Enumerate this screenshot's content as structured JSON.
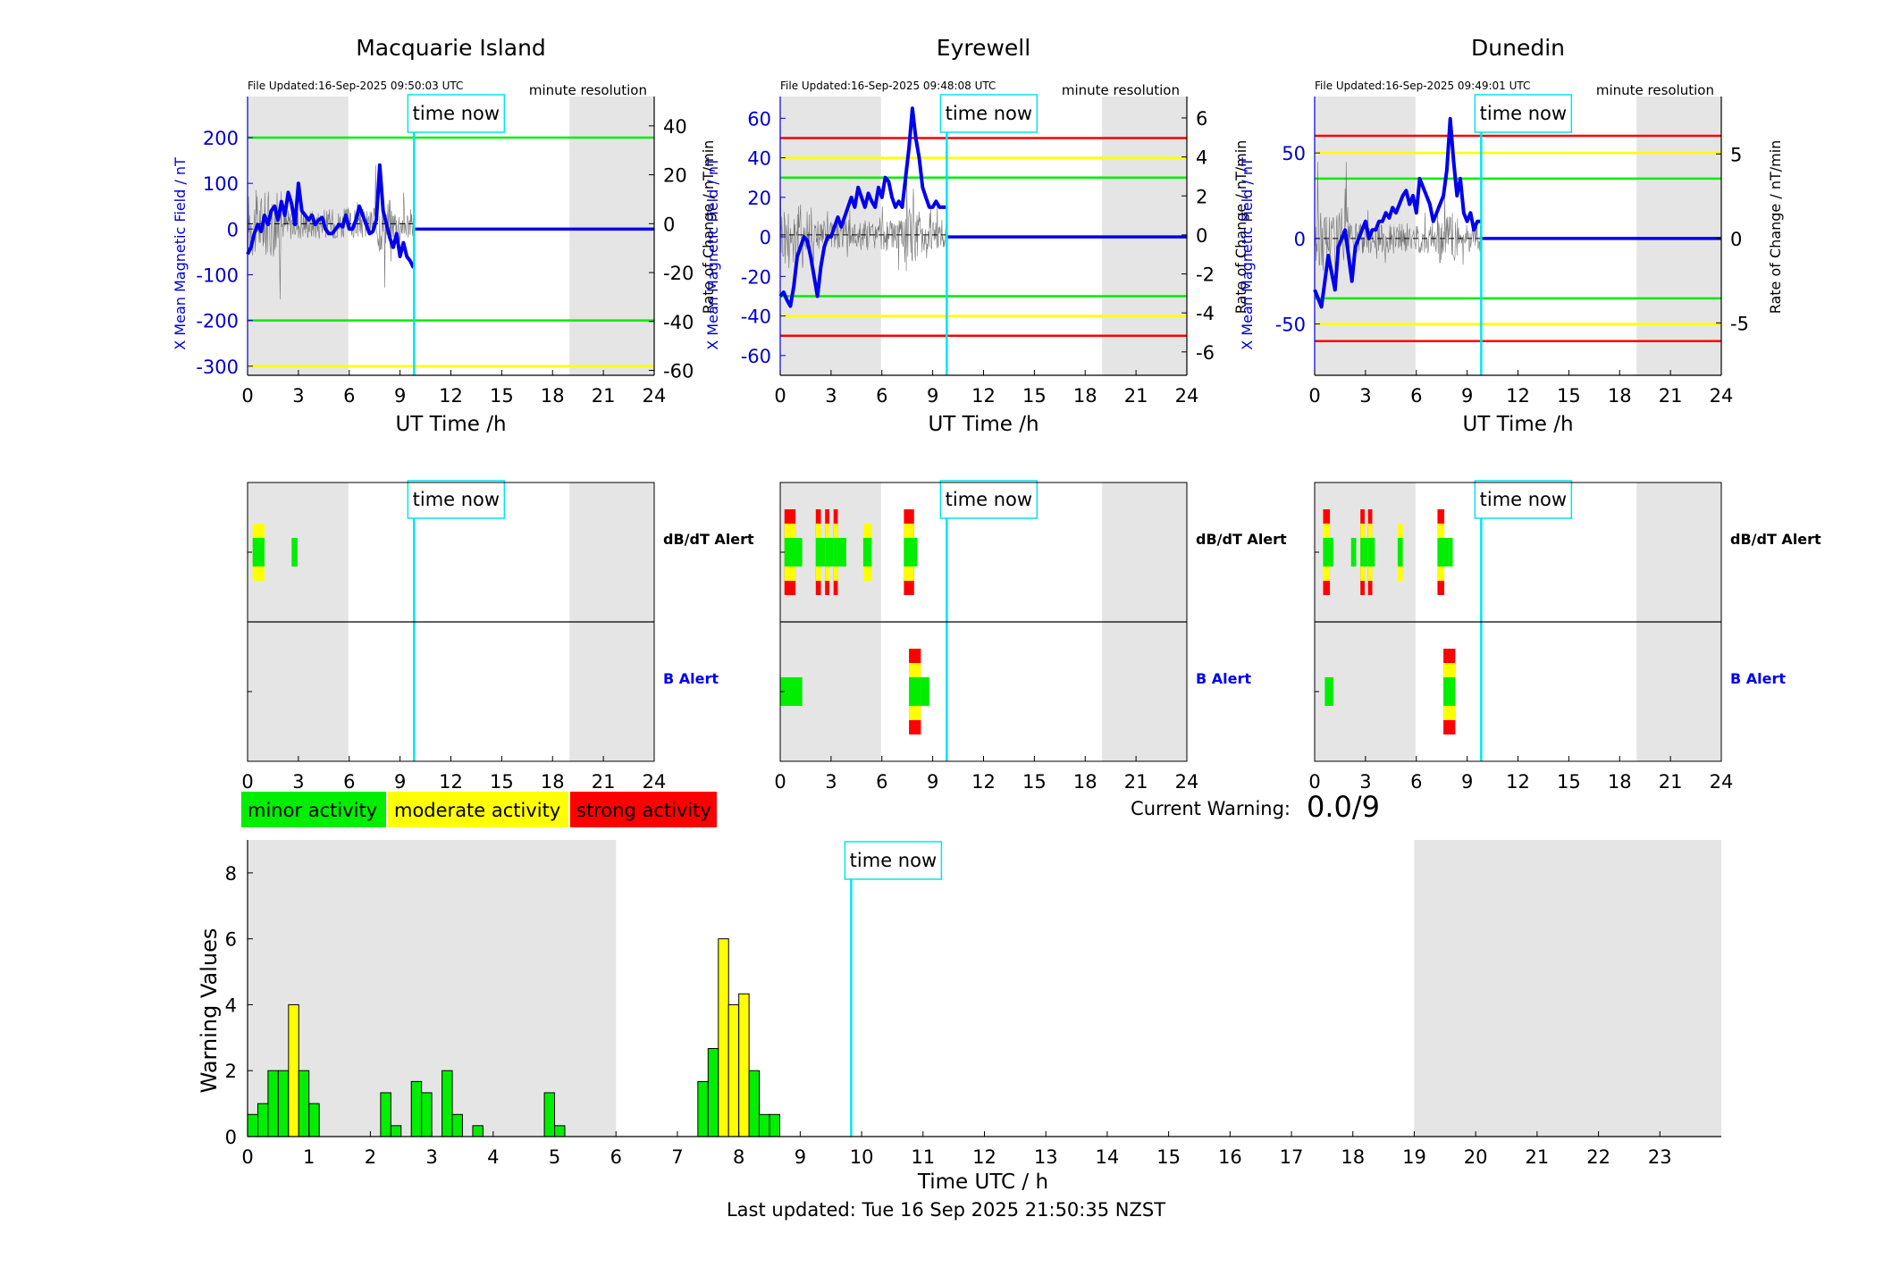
{
  "ui": {
    "time_now_label": "time now",
    "file_updated_prefix": "File Updated:",
    "resolution_label": "minute resolution",
    "x_axis_label": "UT Time /h",
    "left_axis_label": "X Mean Magnetic Field / nT",
    "right_axis_label": "Rate of Change / nT/min",
    "dbdt_alert_label": "dB/dT Alert",
    "b_alert_label": "B Alert",
    "current_warning_label": "Current Warning:",
    "current_warning_value": "0.0/9",
    "last_updated": "Last updated: Tue 16 Sep 2025 21:50:35 NZST",
    "x_ticks": [
      "0",
      "3",
      "6",
      "9",
      "12",
      "15",
      "18",
      "21",
      "24"
    ]
  },
  "colors": {
    "minor": "#00ee00",
    "moderate": "#ffff00",
    "strong": "#ff0000",
    "time_now": "#00e5ee",
    "field_line": "#0000ee",
    "night_shade": "#e5e5e5",
    "axis_blue": "#0000cc"
  },
  "legend": [
    {
      "label": "minor activity",
      "color": "#00ee00"
    },
    {
      "label": "moderate activity",
      "color": "#ffff00"
    },
    {
      "label": "strong activity",
      "color": "#ff0000"
    }
  ],
  "chart_data": [
    {
      "type": "line",
      "station": "Macquarie Island",
      "file_updated": "16-Sep-2025 09:50:03 UTC",
      "time_now_h": 9.83,
      "night_shading_h": [
        [
          0,
          5.95
        ],
        [
          19,
          24
        ]
      ],
      "xlim": [
        0,
        24
      ],
      "ylim_left": [
        -320,
        290
      ],
      "yticks_left": [
        200,
        100,
        0,
        -100,
        -200,
        -300
      ],
      "ylim_right": [
        -62,
        52
      ],
      "yticks_right": [
        40,
        20,
        0,
        -20,
        -40,
        -60
      ],
      "thresholds": [
        {
          "value": 200,
          "color": "green"
        },
        {
          "value": -200,
          "color": "green"
        },
        {
          "value": -300,
          "color": "yellow"
        }
      ],
      "field_x": [
        0,
        0.2,
        0.4,
        0.6,
        0.8,
        1.0,
        1.2,
        1.4,
        1.6,
        1.8,
        2.0,
        2.2,
        2.4,
        2.6,
        2.8,
        3.0,
        3.2,
        3.4,
        3.6,
        3.8,
        4.0,
        4.2,
        4.4,
        4.6,
        4.8,
        5.0,
        5.2,
        5.4,
        5.6,
        5.8,
        6.0,
        6.2,
        6.4,
        6.6,
        6.8,
        7.0,
        7.2,
        7.4,
        7.6,
        7.8,
        8.0,
        8.2,
        8.4,
        8.6,
        8.8,
        9.0,
        9.2,
        9.4,
        9.6,
        9.8
      ],
      "field_y": [
        -55,
        -40,
        -10,
        10,
        -5,
        30,
        10,
        40,
        50,
        20,
        60,
        30,
        80,
        55,
        10,
        100,
        40,
        30,
        20,
        30,
        10,
        20,
        25,
        0,
        -10,
        -10,
        0,
        10,
        5,
        30,
        0,
        0,
        20,
        50,
        30,
        10,
        -10,
        -5,
        20,
        140,
        40,
        10,
        -20,
        -40,
        -10,
        -60,
        -30,
        -60,
        -70,
        -85
      ]
    },
    {
      "type": "line",
      "station": "Eyrewell",
      "file_updated": "16-Sep-2025 09:48:08 UTC",
      "time_now_h": 9.83,
      "night_shading_h": [
        [
          0,
          5.95
        ],
        [
          19,
          24
        ]
      ],
      "xlim": [
        0,
        24
      ],
      "ylim_left": [
        -70,
        71
      ],
      "yticks_left": [
        60,
        40,
        20,
        0,
        -20,
        -40,
        -60
      ],
      "ylim_right": [
        -7.2,
        7.1
      ],
      "yticks_right": [
        6,
        4,
        2,
        0,
        -2,
        -4,
        -6
      ],
      "thresholds": [
        {
          "value": 50,
          "color": "red"
        },
        {
          "value": 40,
          "color": "yellow"
        },
        {
          "value": 30,
          "color": "green"
        },
        {
          "value": -30,
          "color": "green"
        },
        {
          "value": -40,
          "color": "yellow"
        },
        {
          "value": -50,
          "color": "red"
        }
      ],
      "field_x": [
        0,
        0.2,
        0.4,
        0.6,
        0.8,
        1.0,
        1.2,
        1.4,
        1.6,
        1.8,
        2.0,
        2.2,
        2.4,
        2.6,
        2.8,
        3.0,
        3.2,
        3.4,
        3.6,
        3.8,
        4.0,
        4.2,
        4.4,
        4.6,
        4.8,
        5.0,
        5.2,
        5.4,
        5.6,
        5.8,
        6.0,
        6.2,
        6.4,
        6.6,
        6.8,
        7.0,
        7.2,
        7.4,
        7.6,
        7.8,
        8.0,
        8.2,
        8.4,
        8.6,
        8.8,
        9.0,
        9.2,
        9.4,
        9.6,
        9.8
      ],
      "field_y": [
        -30,
        -28,
        -32,
        -35,
        -25,
        -10,
        -5,
        0,
        -2,
        -10,
        -20,
        -30,
        -15,
        -5,
        0,
        0,
        5,
        10,
        5,
        10,
        15,
        20,
        15,
        25,
        20,
        15,
        22,
        18,
        15,
        25,
        20,
        30,
        28,
        20,
        15,
        18,
        15,
        30,
        45,
        65,
        50,
        40,
        25,
        20,
        15,
        15,
        18,
        15,
        15,
        15
      ]
    },
    {
      "type": "line",
      "station": "Dunedin",
      "file_updated": "16-Sep-2025 09:49:01 UTC",
      "time_now_h": 9.83,
      "night_shading_h": [
        [
          0,
          5.95
        ],
        [
          19,
          24
        ]
      ],
      "xlim": [
        0,
        24
      ],
      "ylim_left": [
        -80,
        83
      ],
      "yticks_left": [
        50,
        0,
        -50
      ],
      "ylim_right": [
        -8.1,
        8.4
      ],
      "yticks_right": [
        5,
        0,
        -5
      ],
      "thresholds": [
        {
          "value": 60,
          "color": "red"
        },
        {
          "value": 50,
          "color": "yellow"
        },
        {
          "value": 35,
          "color": "green"
        },
        {
          "value": -35,
          "color": "green"
        },
        {
          "value": -50,
          "color": "yellow"
        },
        {
          "value": -60,
          "color": "red"
        }
      ],
      "field_x": [
        0,
        0.2,
        0.4,
        0.6,
        0.8,
        1.0,
        1.2,
        1.4,
        1.6,
        1.8,
        2.0,
        2.2,
        2.4,
        2.6,
        2.8,
        3.0,
        3.2,
        3.4,
        3.6,
        3.8,
        4.0,
        4.2,
        4.4,
        4.6,
        4.8,
        5.0,
        5.2,
        5.4,
        5.6,
        5.8,
        6.0,
        6.2,
        6.4,
        6.6,
        6.8,
        7.0,
        7.2,
        7.4,
        7.6,
        7.8,
        8.0,
        8.2,
        8.4,
        8.6,
        8.8,
        9.0,
        9.2,
        9.4,
        9.6,
        9.8
      ],
      "field_y": [
        -30,
        -35,
        -40,
        -25,
        -10,
        -20,
        -30,
        -5,
        0,
        5,
        -10,
        -25,
        -5,
        0,
        5,
        10,
        0,
        5,
        5,
        10,
        10,
        15,
        12,
        18,
        15,
        20,
        25,
        28,
        20,
        25,
        15,
        35,
        30,
        25,
        20,
        10,
        15,
        20,
        25,
        40,
        70,
        45,
        25,
        35,
        15,
        10,
        15,
        5,
        10,
        10
      ]
    },
    {
      "type": "alert_timeline",
      "station": "Macquarie Island",
      "time_now_h": 9.83,
      "night_shading_h": [
        [
          0,
          5.95
        ],
        [
          19,
          24
        ]
      ],
      "dbdt_alert": [
        {
          "x0": 0.3,
          "x1": 1.0,
          "level": 2
        },
        {
          "x0": 2.6,
          "x1": 2.95,
          "level": 1
        }
      ],
      "b_alert": []
    },
    {
      "type": "alert_timeline",
      "station": "Eyrewell",
      "time_now_h": 9.83,
      "night_shading_h": [
        [
          0,
          5.95
        ],
        [
          19,
          24
        ]
      ],
      "dbdt_alert": [
        {
          "x0": 0.25,
          "x1": 0.9,
          "level": 3
        },
        {
          "x0": 0.9,
          "x1": 1.3,
          "level": 1
        },
        {
          "x0": 2.1,
          "x1": 2.4,
          "level": 3
        },
        {
          "x0": 2.4,
          "x1": 2.65,
          "level": 1
        },
        {
          "x0": 2.65,
          "x1": 2.9,
          "level": 3
        },
        {
          "x0": 2.9,
          "x1": 3.15,
          "level": 1
        },
        {
          "x0": 3.15,
          "x1": 3.4,
          "level": 3
        },
        {
          "x0": 3.4,
          "x1": 3.9,
          "level": 1
        },
        {
          "x0": 4.9,
          "x1": 5.4,
          "level": 2
        },
        {
          "x0": 7.3,
          "x1": 7.9,
          "level": 3
        },
        {
          "x0": 7.9,
          "x1": 8.1,
          "level": 1
        }
      ],
      "b_alert": [
        {
          "x0": 0.0,
          "x1": 1.3,
          "level": 1
        },
        {
          "x0": 7.6,
          "x1": 8.3,
          "level": 3
        },
        {
          "x0": 8.3,
          "x1": 8.8,
          "level": 1
        }
      ]
    },
    {
      "type": "alert_timeline",
      "station": "Dunedin",
      "time_now_h": 9.83,
      "night_shading_h": [
        [
          0,
          5.95
        ],
        [
          19,
          24
        ]
      ],
      "dbdt_alert": [
        {
          "x0": 0.5,
          "x1": 0.9,
          "level": 3
        },
        {
          "x0": 0.9,
          "x1": 1.1,
          "level": 1
        },
        {
          "x0": 2.15,
          "x1": 2.45,
          "level": 1
        },
        {
          "x0": 2.7,
          "x1": 2.95,
          "level": 3
        },
        {
          "x0": 2.95,
          "x1": 3.15,
          "level": 1
        },
        {
          "x0": 3.15,
          "x1": 3.4,
          "level": 3
        },
        {
          "x0": 3.4,
          "x1": 3.55,
          "level": 1
        },
        {
          "x0": 4.9,
          "x1": 5.2,
          "level": 2
        },
        {
          "x0": 7.25,
          "x1": 7.65,
          "level": 3
        },
        {
          "x0": 7.65,
          "x1": 7.95,
          "level": 1
        },
        {
          "x0": 7.95,
          "x1": 8.15,
          "level": 1
        }
      ],
      "b_alert": [
        {
          "x0": 0.6,
          "x1": 1.1,
          "level": 1
        },
        {
          "x0": 7.6,
          "x1": 8.3,
          "level": 3
        }
      ]
    },
    {
      "type": "bar",
      "title": "",
      "xlabel": "Time UTC / h",
      "ylabel": "Warning Values",
      "xlim": [
        0,
        24
      ],
      "ylim": [
        0,
        9
      ],
      "xticks": [
        "0",
        "1",
        "2",
        "3",
        "4",
        "5",
        "6",
        "7",
        "8",
        "9",
        "10",
        "11",
        "12",
        "13",
        "14",
        "15",
        "16",
        "17",
        "18",
        "19",
        "20",
        "21",
        "22",
        "23"
      ],
      "yticks": [
        0,
        2,
        4,
        6,
        8
      ],
      "time_now_h": 9.83,
      "night_shading_h": [
        [
          0,
          6
        ],
        [
          19,
          24
        ]
      ],
      "bar_width_h": 0.1667,
      "bars": [
        {
          "x": 0.0,
          "value": 0.67,
          "level": 1
        },
        {
          "x": 0.167,
          "value": 1.0,
          "level": 1
        },
        {
          "x": 0.333,
          "value": 2.0,
          "level": 1
        },
        {
          "x": 0.5,
          "value": 2.0,
          "level": 1
        },
        {
          "x": 0.667,
          "value": 4.0,
          "level": 2
        },
        {
          "x": 0.833,
          "value": 2.0,
          "level": 1
        },
        {
          "x": 1.0,
          "value": 1.0,
          "level": 1
        },
        {
          "x": 2.167,
          "value": 1.33,
          "level": 1
        },
        {
          "x": 2.333,
          "value": 0.33,
          "level": 1
        },
        {
          "x": 2.667,
          "value": 1.67,
          "level": 1
        },
        {
          "x": 2.833,
          "value": 1.33,
          "level": 1
        },
        {
          "x": 3.167,
          "value": 2.0,
          "level": 1
        },
        {
          "x": 3.333,
          "value": 0.67,
          "level": 1
        },
        {
          "x": 3.667,
          "value": 0.33,
          "level": 1
        },
        {
          "x": 4.833,
          "value": 1.33,
          "level": 1
        },
        {
          "x": 5.0,
          "value": 0.33,
          "level": 1
        },
        {
          "x": 7.333,
          "value": 1.67,
          "level": 1
        },
        {
          "x": 7.5,
          "value": 2.67,
          "level": 1
        },
        {
          "x": 7.667,
          "value": 6.0,
          "level": 2
        },
        {
          "x": 7.833,
          "value": 4.0,
          "level": 2
        },
        {
          "x": 8.0,
          "value": 4.33,
          "level": 2
        },
        {
          "x": 8.167,
          "value": 2.0,
          "level": 1
        },
        {
          "x": 8.333,
          "value": 0.67,
          "level": 1
        },
        {
          "x": 8.5,
          "value": 0.67,
          "level": 1
        }
      ]
    }
  ]
}
